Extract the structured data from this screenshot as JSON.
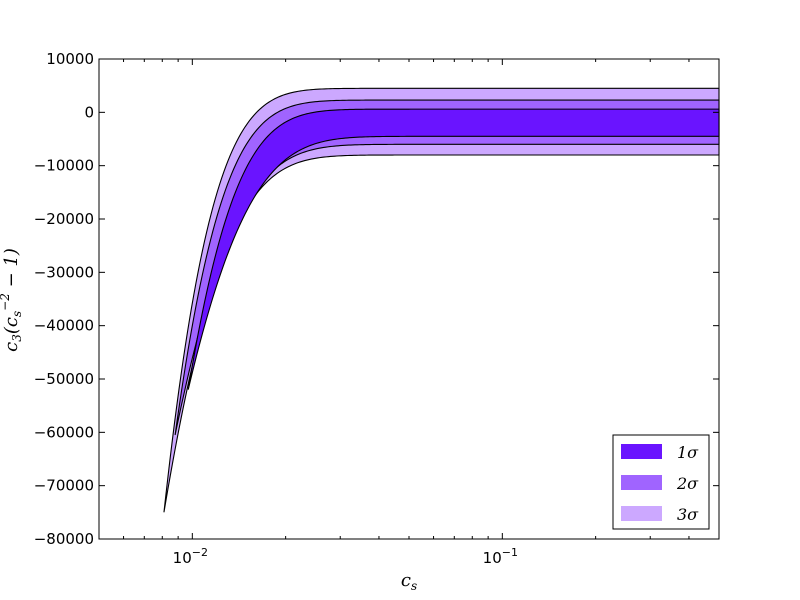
{
  "chart_data": {
    "type": "area",
    "title": "",
    "xlabel": "c_s",
    "ylabel": "c_3(c_s^{-2} − 1)",
    "xscale": "log",
    "xlim": [
      0.005,
      0.5
    ],
    "ylim": [
      -80000,
      10000
    ],
    "grid": false,
    "legend_position": "lower-right",
    "y_ticks": [
      10000,
      0,
      -10000,
      -20000,
      -30000,
      -40000,
      -50000,
      -60000,
      -70000,
      -80000
    ],
    "y_tick_labels": [
      "10000",
      "0",
      "−10000",
      "−20000",
      "−30000",
      "−40000",
      "−50000",
      "−60000",
      "−70000",
      "−80000"
    ],
    "x_ticks": [
      0.01,
      0.1
    ],
    "x_tick_labels": [
      "10",
      "10"
    ],
    "x_tick_exponents": [
      "−2",
      "−1"
    ],
    "regions": [
      {
        "name": "3σ",
        "name_base": "3",
        "color": "#cca8ff",
        "tip_cs": 0.0081,
        "tip_value": -75000,
        "upper_plateau": 4500,
        "lower_plateau": -8000
      },
      {
        "name": "2σ",
        "name_base": "2",
        "color": "#a064ff",
        "tip_cs": 0.0088,
        "tip_value": -60500,
        "upper_plateau": 2300,
        "lower_plateau": -6000
      },
      {
        "name": "1σ",
        "name_base": "1",
        "color": "#6a14ff",
        "tip_cs": 0.0097,
        "tip_value": -52000,
        "upper_plateau": 600,
        "lower_plateau": -4500
      }
    ],
    "legend_entries": [
      {
        "name": "1σ",
        "base": "1",
        "color": "#6a14ff"
      },
      {
        "name": "2σ",
        "base": "2",
        "color": "#a064ff"
      },
      {
        "name": "3σ",
        "base": "3",
        "color": "#cca8ff"
      }
    ]
  }
}
